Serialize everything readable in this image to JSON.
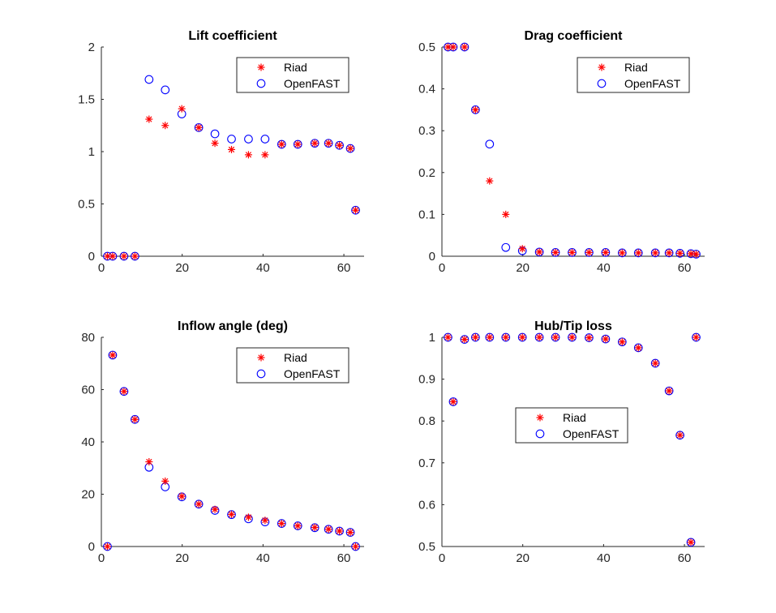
{
  "colors": {
    "riad": "#ff0000",
    "openfast": "#0000ff",
    "axis": "#262626"
  },
  "chart_data": [
    {
      "type": "scatter",
      "title": "Lift coefficient",
      "xlabel": "",
      "ylabel": "",
      "xlim": [
        0,
        65
      ],
      "ylim": [
        0,
        2
      ],
      "xticks": [
        0,
        20,
        40,
        60
      ],
      "yticks": [
        0,
        0.5,
        1,
        1.5,
        2
      ],
      "ytick_labels": [
        "0",
        "0.5",
        "1",
        "1.5",
        "2"
      ],
      "legend_position": "top-right",
      "series": [
        {
          "name": "Riad",
          "marker": "asterisk",
          "x": [
            1.5,
            2.8,
            5.6,
            8.3,
            11.8,
            15.8,
            19.9,
            24.1,
            28.1,
            32.2,
            36.4,
            40.5,
            44.6,
            48.6,
            52.8,
            56.2,
            58.9,
            61.6,
            62.9
          ],
          "y": [
            0,
            0,
            0,
            0,
            1.31,
            1.25,
            1.41,
            1.23,
            1.08,
            1.02,
            0.97,
            0.97,
            1.07,
            1.07,
            1.08,
            1.08,
            1.06,
            1.03,
            0.44
          ]
        },
        {
          "name": "OpenFAST",
          "marker": "circle",
          "x": [
            1.5,
            2.8,
            5.6,
            8.3,
            11.8,
            15.8,
            19.9,
            24.1,
            28.1,
            32.2,
            36.4,
            40.5,
            44.6,
            48.6,
            52.8,
            56.2,
            58.9,
            61.6,
            62.9
          ],
          "y": [
            0,
            0,
            0,
            0,
            1.69,
            1.59,
            1.36,
            1.23,
            1.17,
            1.12,
            1.12,
            1.12,
            1.07,
            1.07,
            1.08,
            1.08,
            1.06,
            1.03,
            0.44
          ]
        }
      ]
    },
    {
      "type": "scatter",
      "title": "Drag coefficient",
      "xlabel": "",
      "ylabel": "",
      "xlim": [
        0,
        65
      ],
      "ylim": [
        0,
        0.5
      ],
      "xticks": [
        0,
        20,
        40,
        60
      ],
      "yticks": [
        0,
        0.1,
        0.2,
        0.3,
        0.4,
        0.5
      ],
      "ytick_labels": [
        "0",
        "0.1",
        "0.2",
        "0.3",
        "0.4",
        "0.5"
      ],
      "legend_position": "top-right",
      "series": [
        {
          "name": "Riad",
          "marker": "asterisk",
          "x": [
            1.5,
            2.8,
            5.6,
            8.3,
            11.8,
            15.8,
            19.9,
            24.1,
            28.1,
            32.2,
            36.4,
            40.5,
            44.6,
            48.6,
            52.8,
            56.2,
            58.9,
            61.6,
            62.9
          ],
          "y": [
            0.5,
            0.5,
            0.5,
            0.35,
            0.18,
            0.1,
            0.018,
            0.01,
            0.009,
            0.009,
            0.009,
            0.009,
            0.008,
            0.008,
            0.008,
            0.008,
            0.007,
            0.006,
            0.005
          ]
        },
        {
          "name": "OpenFAST",
          "marker": "circle",
          "x": [
            1.5,
            2.8,
            5.6,
            8.3,
            11.8,
            15.8,
            19.9,
            24.1,
            28.1,
            32.2,
            36.4,
            40.5,
            44.6,
            48.6,
            52.8,
            56.2,
            58.9,
            61.6,
            62.9
          ],
          "y": [
            0.5,
            0.5,
            0.5,
            0.35,
            0.268,
            0.021,
            0.013,
            0.01,
            0.009,
            0.009,
            0.009,
            0.009,
            0.008,
            0.008,
            0.008,
            0.008,
            0.007,
            0.006,
            0.005
          ]
        }
      ]
    },
    {
      "type": "scatter",
      "title": "Inflow angle (deg)",
      "xlabel": "",
      "ylabel": "",
      "xlim": [
        0,
        65
      ],
      "ylim": [
        0,
        80
      ],
      "xticks": [
        0,
        20,
        40,
        60
      ],
      "yticks": [
        0,
        20,
        40,
        60,
        80
      ],
      "ytick_labels": [
        "0",
        "20",
        "40",
        "60",
        "80"
      ],
      "legend_position": "top-right",
      "series": [
        {
          "name": "Riad",
          "marker": "asterisk",
          "x": [
            1.5,
            2.8,
            5.6,
            8.3,
            11.8,
            15.8,
            19.9,
            24.1,
            28.1,
            32.2,
            36.4,
            40.5,
            44.6,
            48.6,
            52.8,
            56.2,
            58.9,
            61.6,
            62.9
          ],
          "y": [
            0,
            73.2,
            59.3,
            48.6,
            32.4,
            25.0,
            19.2,
            16.2,
            14.2,
            12.3,
            11.2,
            10.0,
            8.8,
            7.9,
            7.3,
            6.6,
            5.9,
            5.4,
            0
          ]
        },
        {
          "name": "OpenFAST",
          "marker": "circle",
          "x": [
            1.5,
            2.8,
            5.6,
            8.3,
            11.8,
            15.8,
            19.9,
            24.1,
            28.1,
            32.2,
            36.4,
            40.5,
            44.6,
            48.6,
            52.8,
            56.2,
            58.9,
            61.6,
            62.9
          ],
          "y": [
            0,
            73.2,
            59.3,
            48.6,
            30.3,
            22.8,
            19.0,
            16.2,
            13.8,
            12.2,
            10.6,
            9.4,
            8.8,
            7.9,
            7.2,
            6.6,
            5.9,
            5.4,
            0
          ]
        }
      ]
    },
    {
      "type": "scatter",
      "title": "Hub/Tip loss",
      "xlabel": "",
      "ylabel": "",
      "xlim": [
        0,
        65
      ],
      "ylim": [
        0.5,
        1
      ],
      "xticks": [
        0,
        20,
        40,
        60
      ],
      "yticks": [
        0.5,
        0.6,
        0.7,
        0.8,
        0.9,
        1
      ],
      "ytick_labels": [
        "0.5",
        "0.6",
        "0.7",
        "0.8",
        "0.9",
        "1"
      ],
      "legend_position": "middle-left",
      "series": [
        {
          "name": "Riad",
          "marker": "asterisk",
          "x": [
            1.5,
            2.8,
            5.6,
            8.3,
            11.8,
            15.8,
            19.9,
            24.1,
            28.1,
            32.2,
            36.4,
            40.5,
            44.6,
            48.6,
            52.8,
            56.2,
            58.9,
            61.6,
            62.9
          ],
          "y": [
            1.0,
            0.846,
            0.995,
            1.0,
            1.0,
            1.0,
            1.0,
            1.0,
            1.0,
            1.0,
            0.999,
            0.996,
            0.989,
            0.975,
            0.938,
            0.872,
            0.766,
            0.51,
            1.0
          ]
        },
        {
          "name": "OpenFAST",
          "marker": "circle",
          "x": [
            1.5,
            2.8,
            5.6,
            8.3,
            11.8,
            15.8,
            19.9,
            24.1,
            28.1,
            32.2,
            36.4,
            40.5,
            44.6,
            48.6,
            52.8,
            56.2,
            58.9,
            61.6,
            62.9
          ],
          "y": [
            1.0,
            0.846,
            0.995,
            1.0,
            1.0,
            1.0,
            1.0,
            1.0,
            1.0,
            1.0,
            0.999,
            0.996,
            0.989,
            0.975,
            0.938,
            0.872,
            0.766,
            0.51,
            1.0
          ]
        }
      ]
    }
  ]
}
